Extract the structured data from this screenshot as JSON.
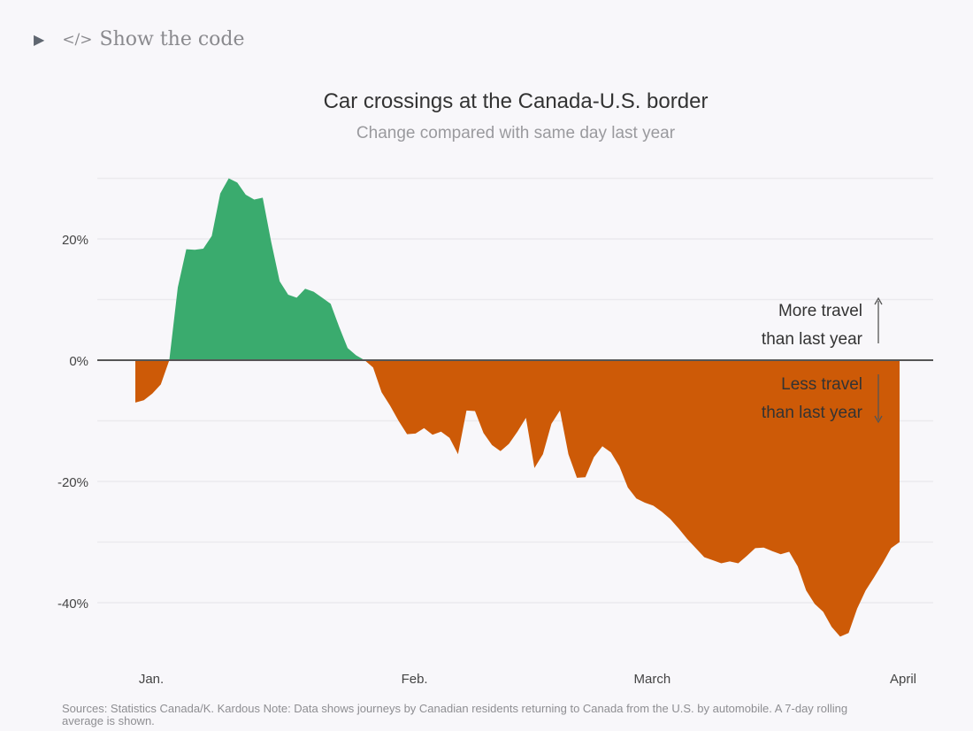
{
  "toggle": {
    "label": "Show the code",
    "icon": "code-icon",
    "expander_icon": "triangle-right-icon"
  },
  "chart_data": {
    "type": "area",
    "title": "Car crossings at the Canada-U.S. border",
    "subtitle": "Change compared with same day last year",
    "xlabel": "",
    "ylabel": "",
    "ylim": [
      -50,
      32
    ],
    "yticks": [
      20,
      0,
      -20,
      -40
    ],
    "ytick_labels": [
      "20%",
      "0%",
      "-20%",
      "-40%"
    ],
    "xticks": [
      {
        "date": "01-01",
        "label": "Jan."
      },
      {
        "date": "02-01",
        "label": "Feb."
      },
      {
        "date": "03-01",
        "label": "March"
      },
      {
        "date": "04-01",
        "label": "April"
      }
    ],
    "grid": true,
    "colors": {
      "positive": "#3aab6e",
      "negative": "#cd5a07",
      "baseline": "#555555"
    },
    "annotations": {
      "more": [
        "More travel",
        "than last year"
      ],
      "less": [
        "Less travel",
        "than last year"
      ]
    },
    "unit": "%",
    "series": [
      {
        "x": [
          "01-01",
          "01-02",
          "01-03",
          "01-04",
          "01-05",
          "01-06",
          "01-07",
          "01-08",
          "01-09",
          "01-10",
          "01-11",
          "01-12",
          "01-13",
          "01-14",
          "01-15",
          "01-16",
          "01-17",
          "01-18",
          "01-19",
          "01-20",
          "01-21",
          "01-22",
          "01-23",
          "01-24",
          "01-25",
          "01-26",
          "01-27",
          "01-28",
          "01-29",
          "01-30",
          "01-31",
          "02-01",
          "02-02",
          "02-03",
          "02-04",
          "02-05",
          "02-06",
          "02-07",
          "02-08",
          "02-09",
          "02-10",
          "02-11",
          "02-12",
          "02-13",
          "02-14",
          "02-15",
          "02-16",
          "02-17",
          "02-18",
          "02-19",
          "02-20",
          "02-21",
          "02-22",
          "02-23",
          "02-24",
          "02-25",
          "02-26",
          "02-27",
          "02-28",
          "03-01",
          "03-02",
          "03-03",
          "03-04",
          "03-05",
          "03-06",
          "03-07",
          "03-08",
          "03-09",
          "03-10",
          "03-11",
          "03-12",
          "03-13",
          "03-14",
          "03-15",
          "03-16",
          "03-17",
          "03-18",
          "03-19",
          "03-20",
          "03-21",
          "03-22",
          "03-23",
          "03-24",
          "03-25",
          "03-26",
          "03-27",
          "03-28",
          "03-29",
          "03-30",
          "03-31",
          "04-01"
        ],
        "values": [
          -7,
          -6.6,
          -5.5,
          -4,
          0,
          12,
          18.3,
          18.2,
          18.4,
          20.5,
          27.5,
          30,
          29.3,
          27.3,
          26.5,
          26.8,
          19.5,
          13,
          10.8,
          10.3,
          11.8,
          11.3,
          10.3,
          9.3,
          5.5,
          2,
          0.8,
          0,
          -1.2,
          -5.3,
          -7.5,
          -10,
          -12.2,
          -12.1,
          -11.2,
          -12.3,
          -11.8,
          -12.8,
          -15.5,
          -8.3,
          -8.4,
          -12,
          -14,
          -15,
          -13.8,
          -11.8,
          -9.5,
          -17.8,
          -15.5,
          -10.5,
          -8.3,
          -15.5,
          -19.4,
          -19.3,
          -16,
          -14.2,
          -15.2,
          -17.5,
          -21,
          -22.8,
          -23.5,
          -24,
          -25,
          -26.2,
          -27.8,
          -29.5,
          -31,
          -32.5,
          -33,
          -33.5,
          -33.2,
          -33.5,
          -32.3,
          -31,
          -30.9,
          -31.5,
          -32,
          -31.6,
          -34,
          -38,
          -40.2,
          -41.5,
          -44,
          -45.6,
          -45,
          -41,
          -38,
          -35.8,
          -33.5,
          -31,
          -30
        ]
      }
    ]
  },
  "source": "Sources: Statistics Canada/K. Kardous Note: Data shows journeys by Canadian residents returning to Canada from the U.S. by automobile. A 7-day rolling average is shown."
}
